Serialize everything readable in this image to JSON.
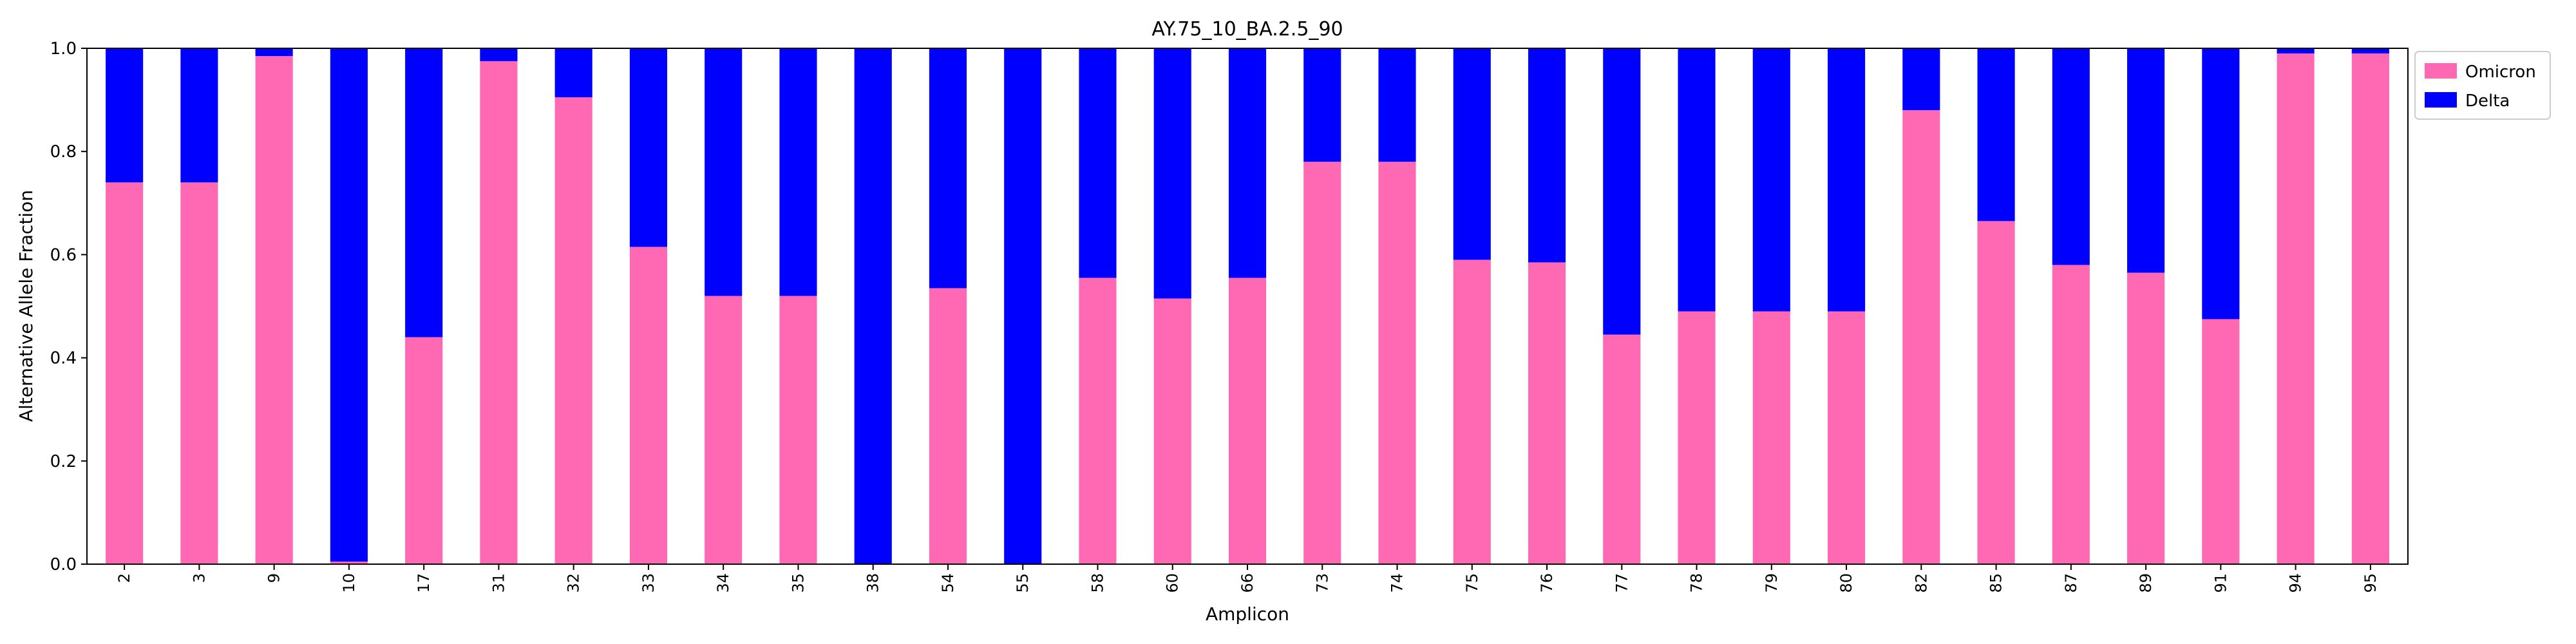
{
  "chart_data": {
    "type": "bar",
    "stacked": true,
    "title": "AY.75_10_BA.2.5_90",
    "xlabel": "Amplicon",
    "ylabel": "Alternative Allele Fraction",
    "ylim": [
      0,
      1.0
    ],
    "yticks": [
      "0.0",
      "0.2",
      "0.4",
      "0.6",
      "0.8",
      "1.0"
    ],
    "legend_position": "outside-top-right",
    "grid": false,
    "categories": [
      "2",
      "3",
      "9",
      "10",
      "17",
      "31",
      "32",
      "33",
      "34",
      "35",
      "38",
      "54",
      "55",
      "58",
      "60",
      "66",
      "73",
      "74",
      "75",
      "76",
      "77",
      "78",
      "79",
      "80",
      "82",
      "85",
      "87",
      "89",
      "91",
      "94",
      "95"
    ],
    "series": [
      {
        "name": "Omicron",
        "color": "#ff69b4",
        "values": [
          0.74,
          0.74,
          0.985,
          0.005,
          0.44,
          0.975,
          0.905,
          0.615,
          0.52,
          0.52,
          0.0,
          0.535,
          0.0,
          0.555,
          0.515,
          0.555,
          0.78,
          0.78,
          0.59,
          0.585,
          0.445,
          0.49,
          0.49,
          0.49,
          0.88,
          0.665,
          0.58,
          0.565,
          0.475,
          0.99,
          0.99
        ]
      },
      {
        "name": "Delta",
        "color": "#0000ff",
        "values": [
          0.26,
          0.26,
          0.015,
          0.995,
          0.56,
          0.025,
          0.095,
          0.385,
          0.48,
          0.48,
          1.0,
          0.465,
          1.0,
          0.445,
          0.485,
          0.445,
          0.22,
          0.22,
          0.41,
          0.415,
          0.555,
          0.51,
          0.51,
          0.51,
          0.12,
          0.335,
          0.42,
          0.435,
          0.525,
          0.01,
          0.01
        ]
      }
    ]
  }
}
